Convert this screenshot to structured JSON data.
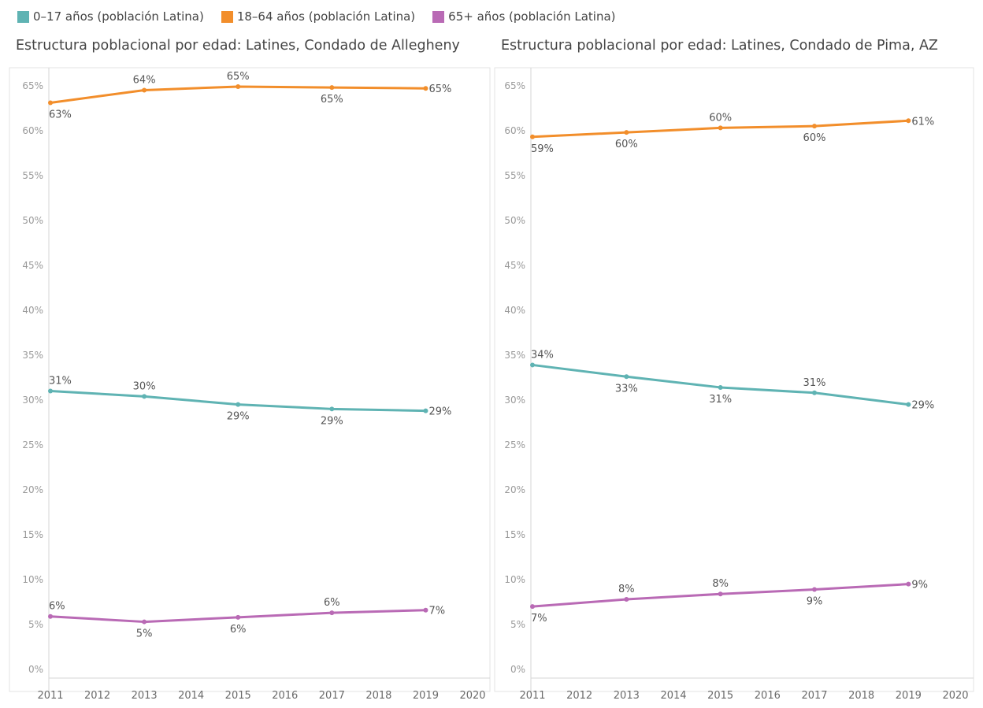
{
  "legend": {
    "items": [
      {
        "label": "0–17 años (población Latina)",
        "color": "#5fb3b3"
      },
      {
        "label": "18–64 años (población Latina)",
        "color": "#f28e2b"
      },
      {
        "label": "65+ años (población Latina)",
        "color": "#b96ab5"
      }
    ]
  },
  "chart_data": [
    {
      "type": "line",
      "title": "Estructura poblacional por edad: Latines, Condado de Allegheny",
      "x_ticks": [
        "2011",
        "2012",
        "2013",
        "2014",
        "2015",
        "2016",
        "2017",
        "2018",
        "2019",
        "2020"
      ],
      "y_ticks": [
        "0%",
        "5%",
        "10%",
        "15%",
        "20%",
        "25%",
        "30%",
        "35%",
        "40%",
        "45%",
        "50%",
        "55%",
        "60%",
        "65%"
      ],
      "xlim": [
        2011,
        2020
      ],
      "ylim": [
        0,
        67
      ],
      "grid": false,
      "series": [
        {
          "name": "0–17 años (población Latina)",
          "color": "#5fb3b3",
          "x": [
            2011,
            2013,
            2015,
            2017,
            2019
          ],
          "y": [
            31.0,
            30.4,
            29.5,
            29.0,
            28.8
          ],
          "labels": [
            "31%",
            "30%",
            "29%",
            "29%",
            "29%"
          ],
          "label_pos": [
            "above",
            "above",
            "below",
            "below",
            "right"
          ]
        },
        {
          "name": "18–64 años (población Latina)",
          "color": "#f28e2b",
          "x": [
            2011,
            2013,
            2015,
            2017,
            2019
          ],
          "y": [
            63.1,
            64.5,
            64.9,
            64.8,
            64.7
          ],
          "labels": [
            "63%",
            "64%",
            "65%",
            "65%",
            "65%"
          ],
          "label_pos": [
            "below",
            "above",
            "above",
            "below",
            "right"
          ]
        },
        {
          "name": "65+ años (población Latina)",
          "color": "#b96ab5",
          "x": [
            2011,
            2013,
            2015,
            2017,
            2019
          ],
          "y": [
            5.9,
            5.3,
            5.8,
            6.3,
            6.6
          ],
          "labels": [
            "6%",
            "5%",
            "6%",
            "6%",
            "7%"
          ],
          "label_pos": [
            "above",
            "below",
            "below",
            "above",
            "right"
          ]
        }
      ]
    },
    {
      "type": "line",
      "title": "Estructura poblacional por edad: Latines, Condado de Pima, AZ",
      "x_ticks": [
        "2011",
        "2012",
        "2013",
        "2014",
        "2015",
        "2016",
        "2017",
        "2018",
        "2019",
        "2020"
      ],
      "y_ticks": [
        "0%",
        "5%",
        "10%",
        "15%",
        "20%",
        "25%",
        "30%",
        "35%",
        "40%",
        "45%",
        "50%",
        "55%",
        "60%",
        "65%"
      ],
      "xlim": [
        2011,
        2020
      ],
      "ylim": [
        0,
        67
      ],
      "grid": false,
      "series": [
        {
          "name": "0–17 años (población Latina)",
          "color": "#5fb3b3",
          "x": [
            2011,
            2013,
            2015,
            2017,
            2019
          ],
          "y": [
            33.9,
            32.6,
            31.4,
            30.8,
            29.5
          ],
          "labels": [
            "34%",
            "33%",
            "31%",
            "31%",
            "29%"
          ],
          "label_pos": [
            "above",
            "below",
            "below",
            "above",
            "right"
          ]
        },
        {
          "name": "18–64 años (población Latina)",
          "color": "#f28e2b",
          "x": [
            2011,
            2013,
            2015,
            2017,
            2019
          ],
          "y": [
            59.3,
            59.8,
            60.3,
            60.5,
            61.1
          ],
          "labels": [
            "59%",
            "60%",
            "60%",
            "60%",
            "61%"
          ],
          "label_pos": [
            "below",
            "below",
            "above",
            "below",
            "right"
          ]
        },
        {
          "name": "65+ años (población Latina)",
          "color": "#b96ab5",
          "x": [
            2011,
            2013,
            2015,
            2017,
            2019
          ],
          "y": [
            7.0,
            7.8,
            8.4,
            8.9,
            9.5
          ],
          "labels": [
            "7%",
            "8%",
            "8%",
            "9%",
            "9%"
          ],
          "label_pos": [
            "below",
            "above",
            "above",
            "below",
            "right"
          ]
        }
      ]
    }
  ]
}
